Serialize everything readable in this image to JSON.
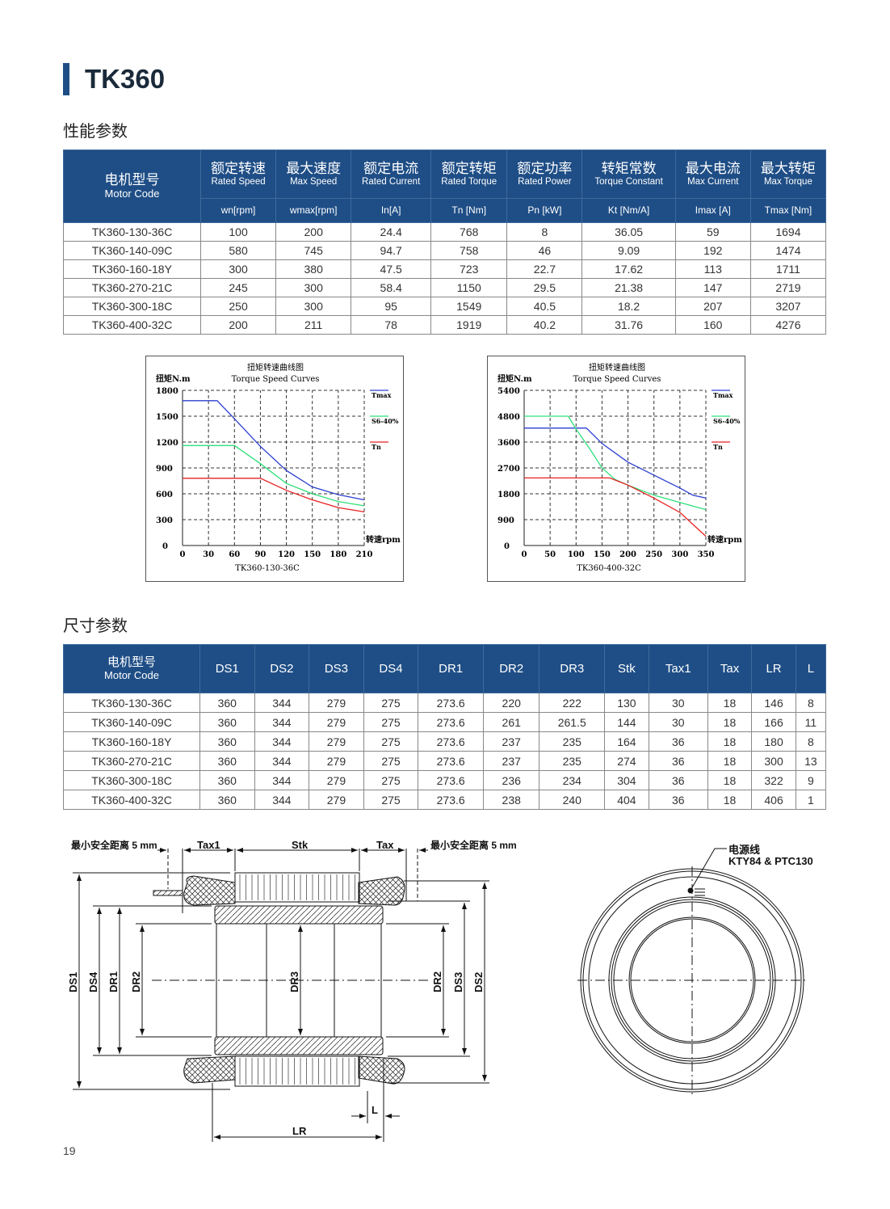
{
  "title": "TK360",
  "performance": {
    "section_title": "性能参数",
    "motor_code_cn": "电机型号",
    "motor_code_en": "Motor Code",
    "columns": [
      {
        "cn": "额定转速",
        "en": "Rated Speed",
        "unit": "wn[rpm]"
      },
      {
        "cn": "最大速度",
        "en": "Max Speed",
        "unit": "wmax[rpm]"
      },
      {
        "cn": "额定电流",
        "en": "Rated Current",
        "unit": "In[A]"
      },
      {
        "cn": "额定转矩",
        "en": "Rated Torque",
        "unit": "Tn [Nm]"
      },
      {
        "cn": "额定功率",
        "en": "Rated Power",
        "unit": "Pn [kW]"
      },
      {
        "cn": "转矩常数",
        "en": "Torque Constant",
        "unit": "Kt [Nm/A]"
      },
      {
        "cn": "最大电流",
        "en": "Max Current",
        "unit": "Imax [A]"
      },
      {
        "cn": "最大转矩",
        "en": "Max Torque",
        "unit": "Tmax [Nm]"
      }
    ],
    "rows": [
      [
        "TK360-130-36C",
        "100",
        "200",
        "24.4",
        "768",
        "8",
        "36.05",
        "59",
        "1694"
      ],
      [
        "TK360-140-09C",
        "580",
        "745",
        "94.7",
        "758",
        "46",
        "9.09",
        "192",
        "1474"
      ],
      [
        "TK360-160-18Y",
        "300",
        "380",
        "47.5",
        "723",
        "22.7",
        "17.62",
        "113",
        "1711"
      ],
      [
        "TK360-270-21C",
        "245",
        "300",
        "58.4",
        "1150",
        "29.5",
        "21.38",
        "147",
        "2719"
      ],
      [
        "TK360-300-18C",
        "250",
        "300",
        "95",
        "1549",
        "40.5",
        "18.2",
        "207",
        "3207"
      ],
      [
        "TK360-400-32C",
        "200",
        "211",
        "78",
        "1919",
        "40.2",
        "31.76",
        "160",
        "4276"
      ]
    ]
  },
  "chart_data": [
    {
      "type": "line",
      "title": "扭矩转速曲线图",
      "subtitle": "Torque Speed Curves",
      "ylabel": "扭矩N.m",
      "xlabel": "转速rpm",
      "caption": "TK360-130-36C",
      "xticks": [
        0,
        30,
        60,
        90,
        120,
        150,
        180,
        210
      ],
      "yticks": [
        0,
        300,
        600,
        900,
        1200,
        1500,
        1800
      ],
      "xlim": [
        0,
        210
      ],
      "ylim": [
        0,
        1800
      ],
      "grid": true,
      "legend": "right",
      "series": [
        {
          "name": "Tmax",
          "color": "#2b3fd0",
          "x": [
            0,
            40,
            60,
            90,
            120,
            150,
            180,
            210
          ],
          "y": [
            1680,
            1680,
            1470,
            1150,
            870,
            680,
            590,
            530
          ]
        },
        {
          "name": "S6-40%",
          "color": "#2ee07a",
          "x": [
            0,
            60,
            90,
            120,
            150,
            180,
            210
          ],
          "y": [
            1160,
            1160,
            950,
            720,
            600,
            510,
            460
          ]
        },
        {
          "name": "Tn",
          "color": "#e82020",
          "x": [
            0,
            90,
            120,
            150,
            180,
            210
          ],
          "y": [
            780,
            780,
            640,
            530,
            440,
            390
          ]
        }
      ]
    },
    {
      "type": "line",
      "title": "扭矩转速曲线图",
      "subtitle": "Torque Speed Curves",
      "ylabel": "扭矩N.m",
      "xlabel": "转速rpm",
      "caption": "TK360-400-32C",
      "xticks": [
        0,
        50,
        100,
        150,
        200,
        250,
        300,
        350
      ],
      "yticks": [
        0,
        900,
        1800,
        2700,
        3600,
        4800,
        5400
      ],
      "xlim": [
        0,
        350
      ],
      "ylim": [
        0,
        5400
      ],
      "grid": true,
      "legend": "right",
      "series": [
        {
          "name": "Tmax",
          "color": "#2b3fd0",
          "x": [
            0,
            120,
            150,
            200,
            250,
            300,
            325,
            350
          ],
          "y": [
            4250,
            4250,
            3550,
            2900,
            2450,
            2000,
            1750,
            1650
          ]
        },
        {
          "name": "S6-40%",
          "color": "#2ee07a",
          "x": [
            0,
            85,
            100,
            125,
            150,
            175,
            200,
            250,
            300,
            350
          ],
          "y": [
            4800,
            4800,
            4200,
            3400,
            2700,
            2300,
            2100,
            1750,
            1500,
            1250
          ]
        },
        {
          "name": "Tn",
          "color": "#e82020",
          "x": [
            0,
            165,
            200,
            250,
            300,
            350
          ],
          "y": [
            2350,
            2350,
            2100,
            1650,
            1150,
            320
          ]
        }
      ]
    }
  ],
  "dimensions": {
    "section_title": "尺寸参数",
    "motor_code_cn": "电机型号",
    "motor_code_en": "Motor Code",
    "columns": [
      "DS1",
      "DS2",
      "DS3",
      "DS4",
      "DR1",
      "DR2",
      "DR3",
      "Stk",
      "Tax1",
      "Tax",
      "LR",
      "L"
    ],
    "rows": [
      [
        "TK360-130-36C",
        "360",
        "344",
        "279",
        "275",
        "273.6",
        "220",
        "222",
        "130",
        "30",
        "18",
        "146",
        "8"
      ],
      [
        "TK360-140-09C",
        "360",
        "344",
        "279",
        "275",
        "273.6",
        "261",
        "261.5",
        "144",
        "30",
        "18",
        "166",
        "11"
      ],
      [
        "TK360-160-18Y",
        "360",
        "344",
        "279",
        "275",
        "273.6",
        "237",
        "235",
        "164",
        "36",
        "18",
        "180",
        "8"
      ],
      [
        "TK360-270-21C",
        "360",
        "344",
        "279",
        "275",
        "273.6",
        "237",
        "235",
        "274",
        "36",
        "18",
        "300",
        "13"
      ],
      [
        "TK360-300-18C",
        "360",
        "344",
        "279",
        "275",
        "273.6",
        "236",
        "234",
        "304",
        "36",
        "18",
        "322",
        "9"
      ],
      [
        "TK360-400-32C",
        "360",
        "344",
        "279",
        "275",
        "273.6",
        "238",
        "240",
        "404",
        "36",
        "18",
        "406",
        "1"
      ]
    ]
  },
  "drawing": {
    "safety_left": "最小安全距离 5 mm",
    "safety_right": "最小安全距离 5 mm",
    "tax1": "Tax1",
    "stk": "Stk",
    "tax": "Tax",
    "lr": "LR",
    "l": "L",
    "ds1": "DS1",
    "ds4": "DS4",
    "dr1": "DR1",
    "dr2": "DR2",
    "dr3": "DR3",
    "dr2b": "DR2",
    "ds3": "DS3",
    "ds2": "DS2",
    "cable_cn": "电源线",
    "cable_en": "KTY84 & PTC130"
  },
  "page_number": "19"
}
